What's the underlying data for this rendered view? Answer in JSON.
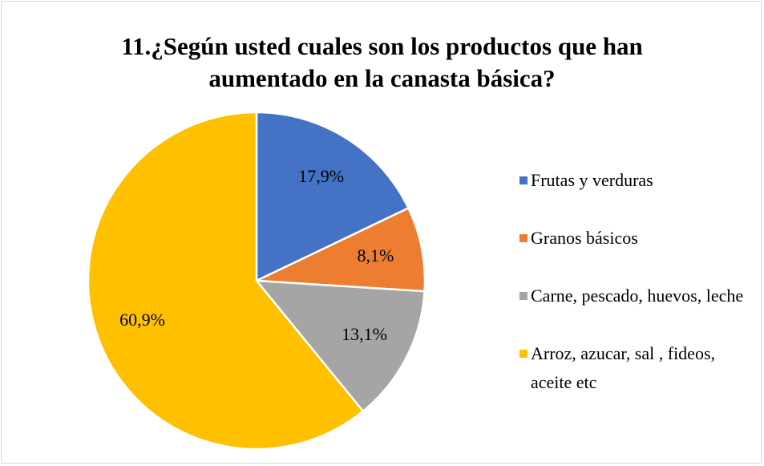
{
  "chart_data": {
    "type": "pie",
    "title": "11.¿Según usted cuales son los productos que han aumentado en la canasta básica?",
    "categories": [
      "Frutas y verduras",
      "Granos básicos",
      "Carne, pescado, huevos, leche",
      "Arroz, azucar, sal , fideos, aceite etc"
    ],
    "values": [
      17.9,
      8.1,
      13.1,
      60.9
    ],
    "value_labels": [
      "17,9%",
      "8,1%",
      "13,1%",
      "60,9%"
    ],
    "colors": [
      "#4472c4",
      "#ed7d31",
      "#a5a5a5",
      "#ffc000"
    ],
    "legend": "right"
  }
}
